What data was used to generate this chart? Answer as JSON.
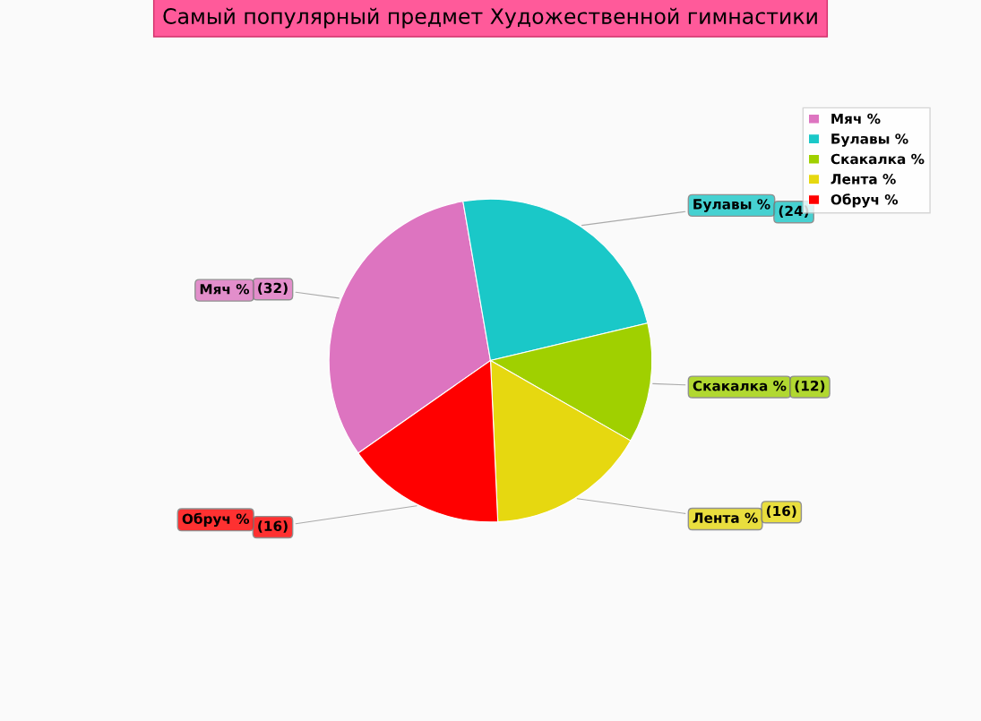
{
  "chart_data": {
    "type": "pie",
    "title": "Самый популярный предмет Художественной гимнастики",
    "categories": [
      "Мяч %",
      "Булавы %",
      "Скакалка %",
      "Лента %",
      "Обруч %"
    ],
    "values": [
      32,
      24,
      12,
      16,
      16
    ],
    "value_labels": [
      "(32)",
      "(24)",
      "(12)",
      "(16)",
      "(16)"
    ],
    "colors": [
      "#dd74c0",
      "#1ac8c8",
      "#a0d000",
      "#e6d810",
      "#ff0000"
    ],
    "legend": "top right"
  }
}
